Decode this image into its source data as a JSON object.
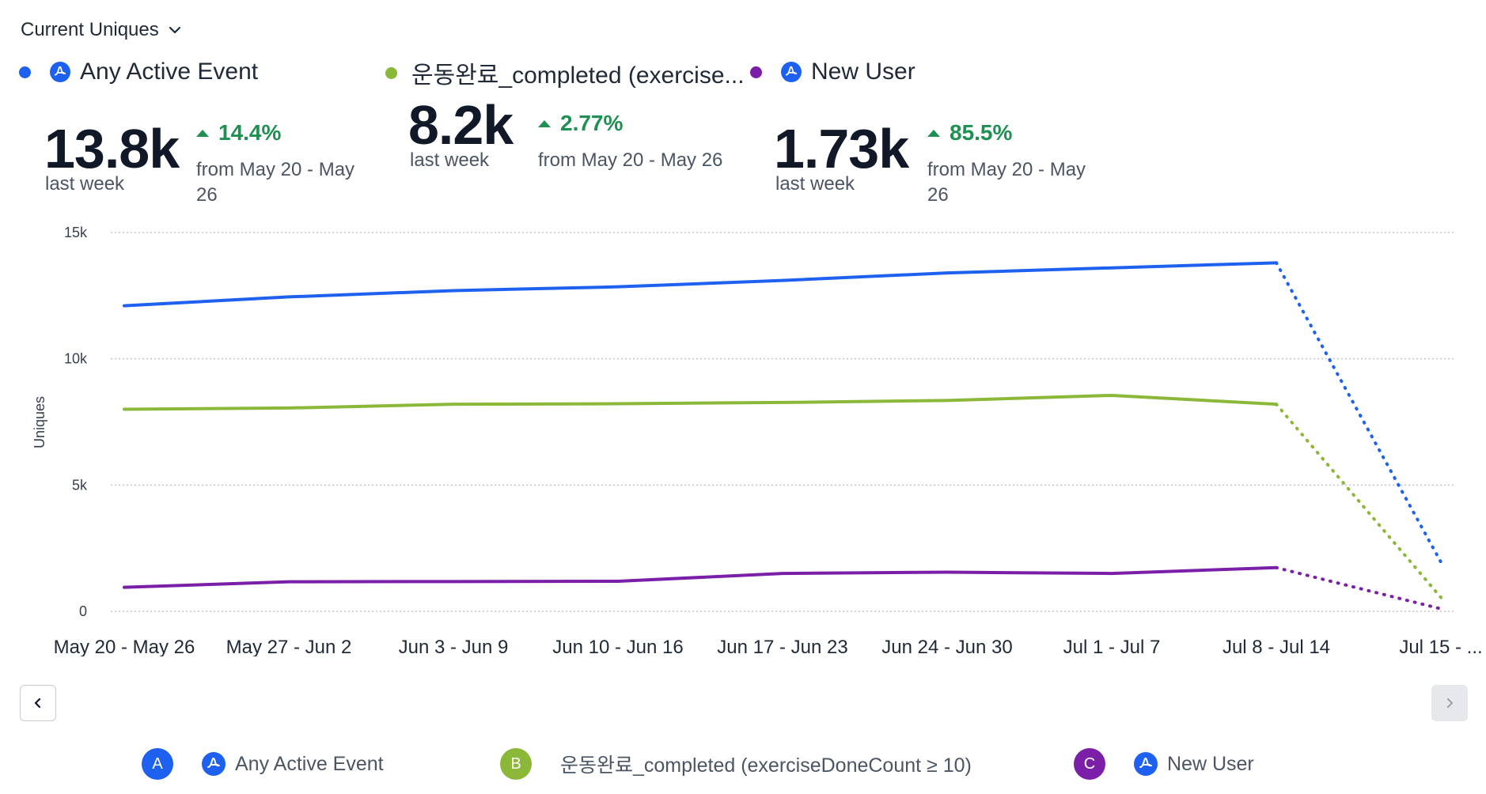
{
  "header": {
    "metric_label": "Current Uniques",
    "dropdown_icon": "chevron-down-icon"
  },
  "summary": [
    {
      "name": "Any Active Event",
      "color": "#1e61f0",
      "icon": "amplitude-icon",
      "value": "13.8k",
      "period": "last week",
      "change": "14.4%",
      "comparison": "from May 20 - May 26"
    },
    {
      "name": "운동완료_completed (exercise...",
      "color": "#8cb83a",
      "icon": "",
      "value": "8.2k",
      "period": "last week",
      "change": "2.77%",
      "comparison": "from May 20 - May 26"
    },
    {
      "name": "New User",
      "color": "#7b1fa9",
      "icon": "amplitude-icon",
      "value": "1.73k",
      "period": "last week",
      "change": "85.5%",
      "comparison": "from May 20 - May 26"
    }
  ],
  "chart_data": {
    "type": "line",
    "ylabel": "Uniques",
    "ylim": [
      0,
      15000
    ],
    "yticks": [
      0,
      5000,
      10000,
      15000
    ],
    "ytick_labels": [
      "0",
      "5k",
      "10k",
      "15k"
    ],
    "categories": [
      "May 20 - May 26",
      "May 27 - Jun 2",
      "Jun 3 - Jun 9",
      "Jun 10 - Jun 16",
      "Jun 17 - Jun 23",
      "Jun 24 - Jun 30",
      "Jul 1 - Jul 7",
      "Jul 8 - Jul 14",
      "Jul 15 - ..."
    ],
    "incomplete_from_index": 7,
    "grid": true,
    "series": [
      {
        "name": "Any Active Event",
        "color": "#1e61f0",
        "values": [
          12100,
          12450,
          12700,
          12850,
          13100,
          13400,
          13600,
          13800,
          1950
        ]
      },
      {
        "name": "운동완료_completed (exerciseDoneCount ≥ 10)",
        "color": "#8cb83a",
        "values": [
          8000,
          8050,
          8200,
          8220,
          8270,
          8350,
          8550,
          8200,
          550
        ]
      },
      {
        "name": "New User",
        "color": "#7b1fa9",
        "values": [
          950,
          1170,
          1180,
          1190,
          1500,
          1550,
          1500,
          1730,
          100
        ]
      }
    ]
  },
  "pagination": {
    "prev_icon": "chevron-left-icon",
    "next_icon": "chevron-right-icon"
  },
  "legend": [
    {
      "badge": "A",
      "name": "Any Active Event",
      "color": "#1e61f0",
      "icon": "amplitude-icon"
    },
    {
      "badge": "B",
      "name": "운동완료_completed (exerciseDoneCount ≥ 10)",
      "color": "#8cb83a",
      "icon": ""
    },
    {
      "badge": "C",
      "name": "New User",
      "color": "#7b1fa9",
      "icon": "amplitude-icon"
    }
  ]
}
